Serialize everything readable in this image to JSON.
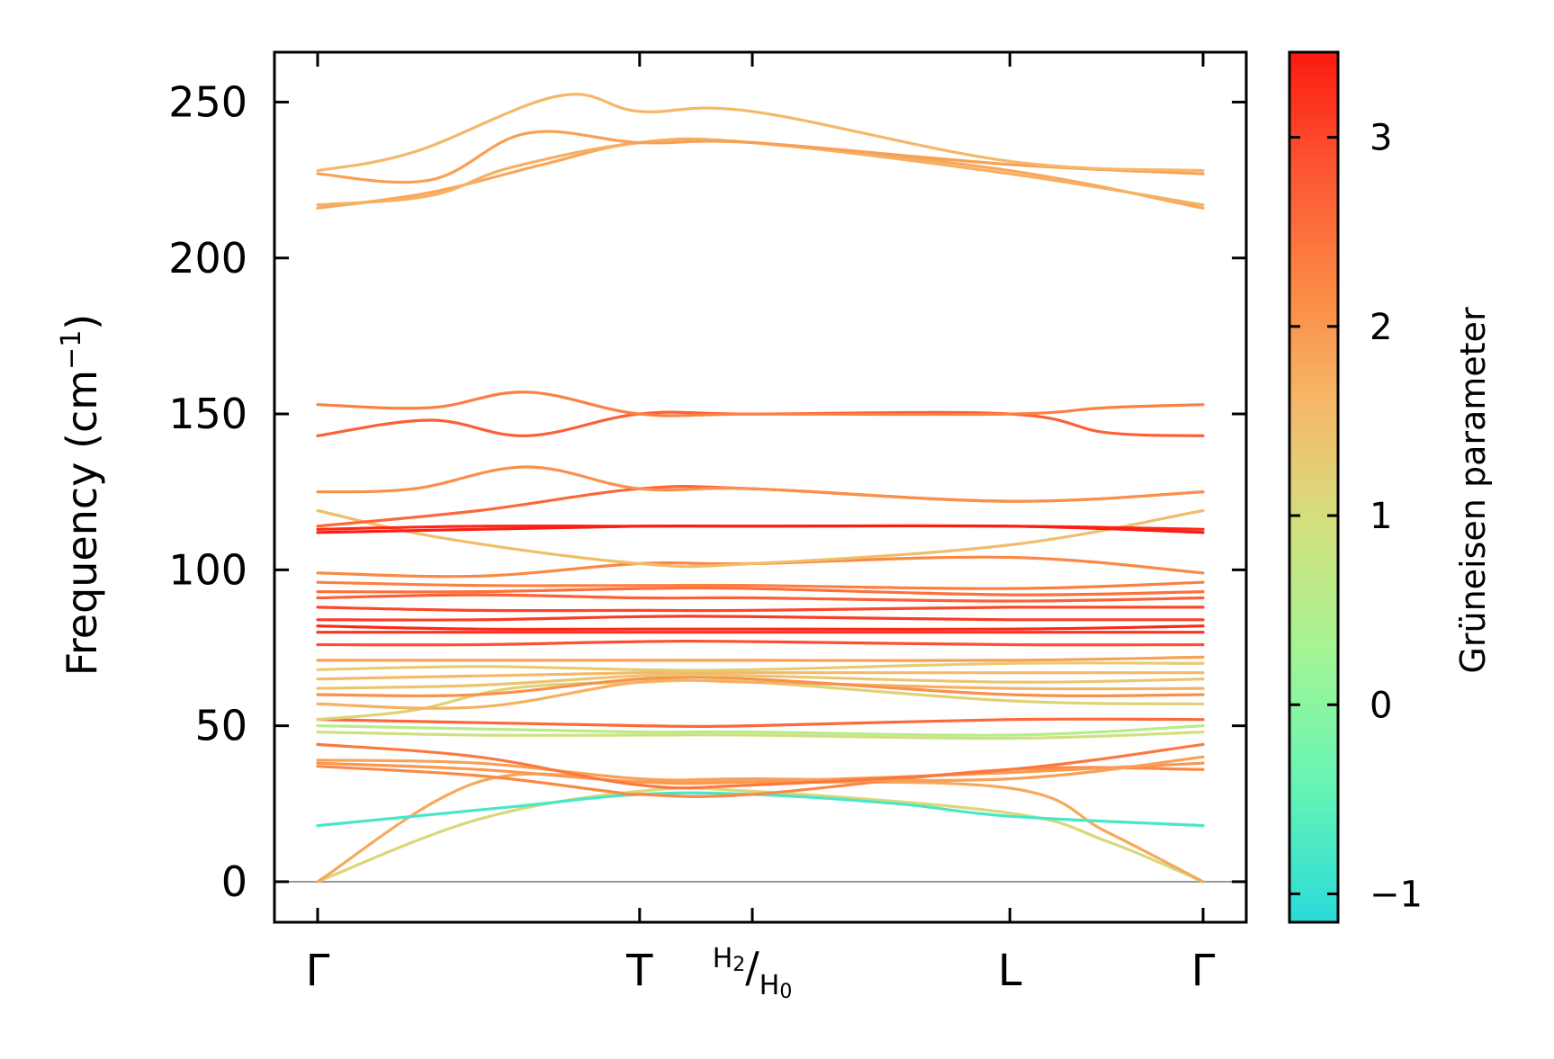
{
  "chart_data": {
    "type": "line",
    "title": "",
    "xlabel": "",
    "ylabel_main": "Frequency (cm",
    "ylabel_sup": "−1",
    "ylabel_close": ")",
    "ylim": [
      -13,
      266
    ],
    "y_ticks": [
      0,
      50,
      100,
      150,
      200,
      250
    ],
    "grid": false,
    "legend": "none",
    "x_segments": [
      1.0,
      0.35,
      0.8,
      0.6
    ],
    "kpoints": [
      {
        "label": "Γ",
        "pos": 0.0
      },
      {
        "label": "T",
        "pos": 1.0
      },
      {
        "label": "H2/H0",
        "pos": 1.35
      },
      {
        "label": "L",
        "pos": 2.15
      },
      {
        "label": "Γ",
        "pos": 2.75
      }
    ],
    "kpoint_label_special": {
      "num": "H",
      "num_sub": "2",
      "den": "H",
      "den_sub": "0"
    },
    "zero_line": {
      "y": 0,
      "color": "#999999"
    },
    "colorbar": {
      "label": "Grüneisen parameter",
      "range": [
        -1.15,
        3.45
      ],
      "ticks": [
        -1,
        0,
        1,
        2,
        3
      ],
      "tick_labels": [
        "−1",
        "0",
        "1",
        "2",
        "3"
      ],
      "colors": [
        {
          "v": -1.15,
          "c": "#2adbd9"
        },
        {
          "v": -0.4,
          "c": "#68f5b4"
        },
        {
          "v": 0.3,
          "c": "#a5f593"
        },
        {
          "v": 1.0,
          "c": "#d6dd7c"
        },
        {
          "v": 1.6,
          "c": "#f5b868"
        },
        {
          "v": 2.2,
          "c": "#fb8844"
        },
        {
          "v": 2.9,
          "c": "#fd5030"
        },
        {
          "v": 3.45,
          "c": "#fb1a10"
        }
      ]
    },
    "series": [
      {
        "gamma": 1.1,
        "points": [
          [
            0,
            0
          ],
          [
            0.5,
            20
          ],
          [
            1.0,
            29
          ],
          [
            1.35,
            29
          ],
          [
            2.15,
            22
          ],
          [
            2.45,
            13
          ],
          [
            2.75,
            0
          ]
        ]
      },
      {
        "gamma": 1.8,
        "points": [
          [
            0,
            0
          ],
          [
            0.5,
            32
          ],
          [
            1.0,
            32
          ],
          [
            1.35,
            32
          ],
          [
            2.15,
            30
          ],
          [
            2.45,
            16
          ],
          [
            2.75,
            0
          ]
        ]
      },
      {
        "gamma": -0.8,
        "points": [
          [
            0,
            18
          ],
          [
            0.6,
            24
          ],
          [
            1.0,
            28
          ],
          [
            1.35,
            28
          ],
          [
            1.8,
            25
          ],
          [
            2.15,
            21
          ],
          [
            2.75,
            18
          ]
        ]
      },
      {
        "gamma": 2.2,
        "points": [
          [
            0,
            37
          ],
          [
            0.5,
            34
          ],
          [
            0.9,
            29
          ],
          [
            1.0,
            28
          ],
          [
            1.35,
            28
          ],
          [
            2.15,
            36
          ],
          [
            2.75,
            36
          ]
        ]
      },
      {
        "gamma": 2.0,
        "points": [
          [
            0,
            38
          ],
          [
            0.5,
            36
          ],
          [
            1.0,
            32
          ],
          [
            1.35,
            32
          ],
          [
            2.15,
            35
          ],
          [
            2.75,
            38
          ]
        ]
      },
      {
        "gamma": 1.9,
        "points": [
          [
            0,
            39
          ],
          [
            0.5,
            38
          ],
          [
            1.0,
            33
          ],
          [
            1.35,
            33
          ],
          [
            2.15,
            33
          ],
          [
            2.75,
            40
          ]
        ]
      },
      {
        "gamma": 2.4,
        "points": [
          [
            0,
            44
          ],
          [
            0.5,
            40
          ],
          [
            1.0,
            31
          ],
          [
            1.35,
            31
          ],
          [
            2.15,
            36
          ],
          [
            2.75,
            44
          ]
        ]
      },
      {
        "gamma": 0.9,
        "points": [
          [
            0,
            48
          ],
          [
            0.5,
            47
          ],
          [
            1.0,
            47
          ],
          [
            1.35,
            47
          ],
          [
            2.15,
            46
          ],
          [
            2.75,
            48
          ]
        ]
      },
      {
        "gamma": 0.6,
        "points": [
          [
            0,
            50
          ],
          [
            0.5,
            49
          ],
          [
            1.0,
            48
          ],
          [
            1.35,
            48
          ],
          [
            2.15,
            47
          ],
          [
            2.75,
            50
          ]
        ]
      },
      {
        "gamma": 2.6,
        "points": [
          [
            0,
            52
          ],
          [
            0.5,
            51
          ],
          [
            1.0,
            50
          ],
          [
            1.35,
            50
          ],
          [
            2.15,
            52
          ],
          [
            2.75,
            52
          ]
        ]
      },
      {
        "gamma": 1.2,
        "points": [
          [
            0,
            52
          ],
          [
            0.3,
            55
          ],
          [
            0.6,
            62
          ],
          [
            1.0,
            64
          ],
          [
            1.35,
            64
          ],
          [
            2.15,
            58
          ],
          [
            2.75,
            57
          ]
        ]
      },
      {
        "gamma": 1.7,
        "points": [
          [
            0,
            57
          ],
          [
            0.5,
            56
          ],
          [
            1.0,
            64
          ],
          [
            1.35,
            64
          ],
          [
            2.15,
            62
          ],
          [
            2.75,
            62
          ]
        ]
      },
      {
        "gamma": 2.1,
        "points": [
          [
            0,
            60
          ],
          [
            0.5,
            60
          ],
          [
            1.0,
            65
          ],
          [
            1.35,
            65
          ],
          [
            2.15,
            60
          ],
          [
            2.75,
            60
          ]
        ]
      },
      {
        "gamma": 1.4,
        "points": [
          [
            0,
            62
          ],
          [
            0.5,
            63
          ],
          [
            1.0,
            66
          ],
          [
            1.35,
            66
          ],
          [
            2.15,
            64
          ],
          [
            2.75,
            65
          ]
        ]
      },
      {
        "gamma": 1.6,
        "points": [
          [
            0,
            65
          ],
          [
            0.5,
            66
          ],
          [
            1.0,
            67
          ],
          [
            1.35,
            67
          ],
          [
            2.15,
            67
          ],
          [
            2.75,
            67
          ]
        ]
      },
      {
        "gamma": 1.3,
        "points": [
          [
            0,
            68
          ],
          [
            0.5,
            69
          ],
          [
            1.0,
            68
          ],
          [
            1.35,
            68
          ],
          [
            2.15,
            70
          ],
          [
            2.75,
            70
          ]
        ]
      },
      {
        "gamma": 1.9,
        "points": [
          [
            0,
            71
          ],
          [
            0.5,
            71
          ],
          [
            1.0,
            71
          ],
          [
            1.35,
            71
          ],
          [
            2.15,
            71
          ],
          [
            2.75,
            72
          ]
        ]
      },
      {
        "gamma": 2.9,
        "points": [
          [
            0,
            76
          ],
          [
            0.5,
            76
          ],
          [
            1.0,
            77
          ],
          [
            1.35,
            77
          ],
          [
            2.15,
            76
          ],
          [
            2.75,
            76
          ]
        ]
      },
      {
        "gamma": 3.2,
        "points": [
          [
            0,
            80
          ],
          [
            0.5,
            80
          ],
          [
            1.0,
            80
          ],
          [
            1.35,
            80
          ],
          [
            2.15,
            80
          ],
          [
            2.75,
            80
          ]
        ]
      },
      {
        "gamma": 3.3,
        "points": [
          [
            0,
            82
          ],
          [
            0.5,
            81
          ],
          [
            1.0,
            81
          ],
          [
            1.35,
            81
          ],
          [
            2.15,
            81
          ],
          [
            2.75,
            82
          ]
        ]
      },
      {
        "gamma": 3.1,
        "points": [
          [
            0,
            84
          ],
          [
            0.5,
            84
          ],
          [
            1.0,
            85
          ],
          [
            1.35,
            85
          ],
          [
            2.15,
            84
          ],
          [
            2.75,
            84
          ]
        ]
      },
      {
        "gamma": 3.0,
        "points": [
          [
            0,
            88
          ],
          [
            0.5,
            87
          ],
          [
            1.0,
            87
          ],
          [
            1.35,
            87
          ],
          [
            2.15,
            88
          ],
          [
            2.75,
            88
          ]
        ]
      },
      {
        "gamma": 2.7,
        "points": [
          [
            0,
            91
          ],
          [
            0.5,
            92
          ],
          [
            1.0,
            91
          ],
          [
            1.35,
            91
          ],
          [
            2.15,
            90
          ],
          [
            2.75,
            91
          ]
        ]
      },
      {
        "gamma": 2.5,
        "points": [
          [
            0,
            93
          ],
          [
            0.5,
            93
          ],
          [
            1.0,
            94
          ],
          [
            1.35,
            94
          ],
          [
            2.15,
            92
          ],
          [
            2.75,
            93
          ]
        ]
      },
      {
        "gamma": 2.3,
        "points": [
          [
            0,
            96
          ],
          [
            0.5,
            95
          ],
          [
            1.0,
            95
          ],
          [
            1.35,
            95
          ],
          [
            2.15,
            94
          ],
          [
            2.75,
            96
          ]
        ]
      },
      {
        "gamma": 2.2,
        "points": [
          [
            0,
            99
          ],
          [
            0.5,
            98
          ],
          [
            1.0,
            102
          ],
          [
            1.35,
            102
          ],
          [
            2.15,
            104
          ],
          [
            2.75,
            99
          ]
        ]
      },
      {
        "gamma": 1.5,
        "points": [
          [
            0,
            119
          ],
          [
            0.4,
            110
          ],
          [
            1.0,
            102
          ],
          [
            1.35,
            102
          ],
          [
            2.15,
            108
          ],
          [
            2.75,
            119
          ]
        ]
      },
      {
        "gamma": 3.3,
        "points": [
          [
            0,
            113
          ],
          [
            0.5,
            114
          ],
          [
            1.0,
            114
          ],
          [
            1.35,
            114
          ],
          [
            2.15,
            114
          ],
          [
            2.75,
            113
          ]
        ]
      },
      {
        "gamma": 3.4,
        "points": [
          [
            0,
            112
          ],
          [
            0.5,
            113
          ],
          [
            1.0,
            114
          ],
          [
            1.35,
            114
          ],
          [
            2.15,
            114
          ],
          [
            2.75,
            112
          ]
        ]
      },
      {
        "gamma": 2.6,
        "points": [
          [
            0,
            114
          ],
          [
            0.5,
            119
          ],
          [
            1.0,
            126
          ],
          [
            1.35,
            126
          ],
          [
            2.15,
            122
          ],
          [
            2.75,
            125
          ]
        ]
      },
      {
        "gamma": 2.1,
        "points": [
          [
            0,
            125
          ],
          [
            0.3,
            126
          ],
          [
            0.65,
            133
          ],
          [
            1.0,
            126
          ],
          [
            1.35,
            126
          ],
          [
            2.15,
            122
          ],
          [
            2.75,
            125
          ]
        ]
      },
      {
        "gamma": 2.7,
        "points": [
          [
            0,
            143
          ],
          [
            0.35,
            148
          ],
          [
            0.65,
            143
          ],
          [
            1.0,
            150
          ],
          [
            1.35,
            150
          ],
          [
            2.15,
            150
          ],
          [
            2.45,
            144
          ],
          [
            2.75,
            143
          ]
        ]
      },
      {
        "gamma": 2.3,
        "points": [
          [
            0,
            153
          ],
          [
            0.35,
            152
          ],
          [
            0.65,
            157
          ],
          [
            1.0,
            150
          ],
          [
            1.35,
            150
          ],
          [
            2.15,
            150
          ],
          [
            2.45,
            152
          ],
          [
            2.75,
            153
          ]
        ]
      },
      {
        "gamma": 1.8,
        "points": [
          [
            0,
            216
          ],
          [
            0.35,
            221
          ],
          [
            0.7,
            230
          ],
          [
            1.0,
            237
          ],
          [
            1.35,
            237
          ],
          [
            2.15,
            228
          ],
          [
            2.75,
            216
          ]
        ]
      },
      {
        "gamma": 1.7,
        "points": [
          [
            0,
            217
          ],
          [
            0.35,
            220
          ],
          [
            0.6,
            229
          ],
          [
            1.0,
            237
          ],
          [
            1.35,
            237
          ],
          [
            2.15,
            227
          ],
          [
            2.75,
            217
          ]
        ]
      },
      {
        "gamma": 1.9,
        "points": [
          [
            0,
            227
          ],
          [
            0.35,
            225
          ],
          [
            0.65,
            240
          ],
          [
            1.0,
            237
          ],
          [
            1.35,
            237
          ],
          [
            2.15,
            230
          ],
          [
            2.75,
            227
          ]
        ]
      },
      {
        "gamma": 1.6,
        "points": [
          [
            0,
            228
          ],
          [
            0.3,
            234
          ],
          [
            0.75,
            252
          ],
          [
            1.0,
            247
          ],
          [
            1.35,
            247
          ],
          [
            2.15,
            231
          ],
          [
            2.75,
            228
          ]
        ]
      }
    ]
  }
}
